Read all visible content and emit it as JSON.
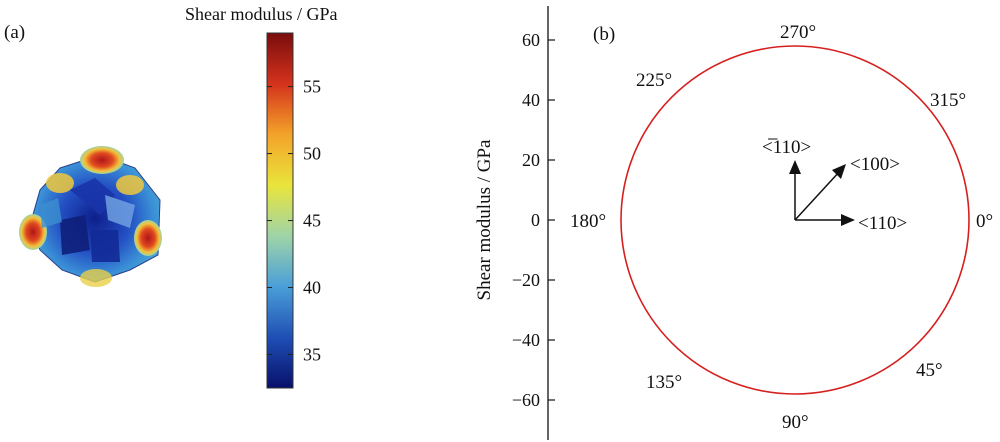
{
  "chart_data": [
    {
      "type": "heatmap",
      "panel_label": "(a)",
      "title": "Shear modulus / GPa",
      "colorbar": {
        "ticks": [
          55,
          50,
          45,
          40,
          35
        ],
        "range": [
          32.5,
          59
        ],
        "colors": [
          "#08106b",
          "#1f4fb5",
          "#4a9fd8",
          "#9fd4a8",
          "#e9e43b",
          "#f3a32a",
          "#d4321c",
          "#7a0d0d"
        ]
      }
    },
    {
      "type": "line",
      "subtype": "polar",
      "panel_label": "(b)",
      "ylabel": "Shear modulus / GPa",
      "yticks": [
        60,
        40,
        20,
        0,
        -20,
        -40,
        -60
      ],
      "ylim": [
        -70,
        70
      ],
      "radius": 58,
      "line_color": "#d62020",
      "angle_labels": [
        "270°",
        "315°",
        "0°",
        "45°",
        "90°",
        "135°",
        "180°",
        "225°"
      ],
      "directions": [
        "<̅110>",
        "<100>",
        "<110>"
      ]
    }
  ]
}
